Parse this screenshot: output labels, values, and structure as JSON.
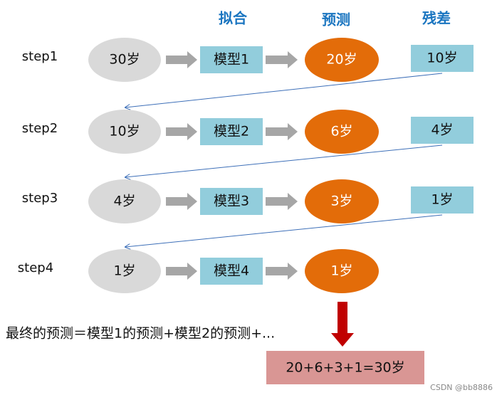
{
  "headers": [
    "拟合",
    "预测",
    "残差"
  ],
  "steps": [
    {
      "label": "step1",
      "input": "30岁",
      "model": "模型1",
      "prediction": "20岁",
      "residual": "10岁"
    },
    {
      "label": "step2",
      "input": "10岁",
      "model": "模型2",
      "prediction": "6岁",
      "residual": "4岁"
    },
    {
      "label": "step3",
      "input": "4岁",
      "model": "模型3",
      "prediction": "3岁",
      "residual": "1岁"
    },
    {
      "label": "step4",
      "input": "1岁",
      "model": "模型4",
      "prediction": "1岁"
    }
  ],
  "formula": "最终的预测＝模型1的预测+模型2的预测+...",
  "result": "20+6+3+1=30岁",
  "watermark": "CSDN @bb8886"
}
